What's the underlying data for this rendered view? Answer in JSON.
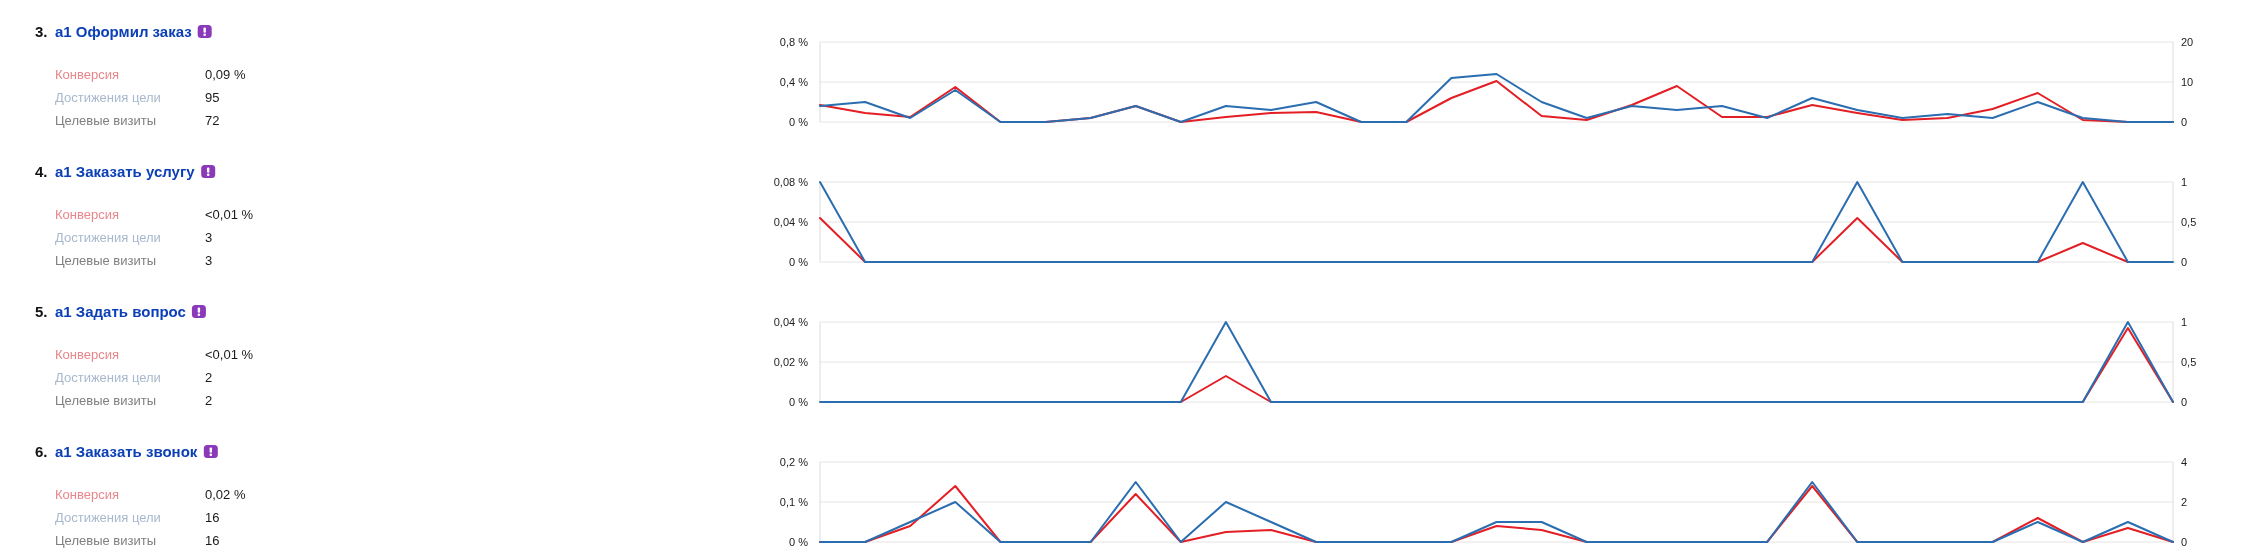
{
  "chart_data": [
    {
      "type": "other",
      "title": "3. a1 Оформил заказ",
      "annotations": [
        "Конверсия",
        "0,09 %",
        "Достижения цели",
        "95",
        "Целевые визиты",
        "72"
      ]
    },
    {
      "type": "line",
      "categories": [
        null,
        null,
        null,
        null,
        null,
        null,
        null,
        null,
        null,
        null,
        null,
        null,
        null,
        null,
        null,
        null,
        null,
        null,
        null,
        null,
        null,
        null,
        null,
        null,
        null,
        null,
        null,
        null,
        null,
        null,
        null
      ],
      "series": [
        {
          "color": "#e31e24",
          "values": [
            0.17,
            0.09,
            0.05,
            0.35,
            0,
            0,
            0.04,
            0.16,
            0,
            0.05,
            0.09,
            0.1,
            0,
            0,
            0.24,
            0.41,
            0.06,
            0.02,
            0.17,
            0.36,
            0.05,
            0.05,
            0.17,
            0.09,
            0.02,
            0.04,
            0.13,
            0.29,
            0.02,
            0,
            0
          ]
        },
        {
          "color": "#2a6db0",
          "axis": "y2",
          "values": [
            4,
            5,
            1,
            8,
            0,
            0,
            1,
            4,
            0,
            4,
            3,
            5,
            0,
            0,
            11,
            12,
            5,
            1,
            4,
            3,
            4,
            1,
            6,
            3,
            1,
            2,
            1,
            5,
            1,
            0,
            0
          ]
        }
      ],
      "ylim": [
        0,
        0.8
      ],
      "yticks": [
        {
          "value": 0,
          "label": "0 %"
        },
        {
          "value": 0.4,
          "label": "0,4 %"
        },
        {
          "value": 0.8,
          "label": "0,8 %"
        }
      ],
      "y2lim": [
        0,
        20
      ],
      "y2ticks": [
        0,
        10,
        20
      ],
      "grid": "y"
    },
    {
      "type": "other",
      "title": "4. a1 Заказать услугу",
      "annotations": [
        "Конверсия",
        "<0,01 %",
        "Достижения цели",
        "3",
        "Целевые визиты",
        "3"
      ]
    },
    {
      "type": "line",
      "categories": [
        null,
        null,
        null,
        null,
        null,
        null,
        null,
        null,
        null,
        null,
        null,
        null,
        null,
        null,
        null,
        null,
        null,
        null,
        null,
        null,
        null,
        null,
        null,
        null,
        null,
        null,
        null,
        null,
        null,
        null,
        null
      ],
      "series": [
        {
          "color": "#e31e24",
          "values": [
            0.044,
            0,
            null,
            null,
            null,
            null,
            null,
            null,
            null,
            null,
            null,
            null,
            null,
            null,
            null,
            null,
            null,
            null,
            null,
            null,
            null,
            null,
            0,
            0.044,
            0,
            null,
            null,
            0,
            0.019,
            0,
            null
          ]
        },
        {
          "color": "#2a6db0",
          "axis": "y2",
          "values": [
            1,
            0,
            0,
            0,
            0,
            0,
            0,
            0,
            0,
            0,
            0,
            0,
            0,
            0,
            0,
            0,
            0,
            0,
            0,
            0,
            0,
            0,
            0,
            1,
            0,
            0,
            0,
            0,
            1,
            0,
            0
          ]
        }
      ],
      "ylim": [
        0,
        0.08
      ],
      "yticks": [
        {
          "value": 0,
          "label": "0 %"
        },
        {
          "value": 0.04,
          "label": "0,04 %"
        },
        {
          "value": 0.08,
          "label": "0,08 %"
        }
      ],
      "y2lim": [
        0,
        1
      ],
      "y2ticks": [
        0,
        {
          "value": 0.5,
          "label": "0,5"
        },
        1
      ],
      "grid": "y"
    },
    {
      "type": "other",
      "title": "5. a1 Задать вопрос",
      "annotations": [
        "Конверсия",
        "<0,01 %",
        "Достижения цели",
        "2",
        "Целевые визиты",
        "2"
      ]
    },
    {
      "type": "line",
      "categories": [
        null,
        null,
        null,
        null,
        null,
        null,
        null,
        null,
        null,
        null,
        null,
        null,
        null,
        null,
        null,
        null,
        null,
        null,
        null,
        null,
        null,
        null,
        null,
        null,
        null,
        null,
        null,
        null,
        null,
        null,
        null
      ],
      "series": [
        {
          "color": "#e31e24",
          "values": [
            null,
            null,
            null,
            null,
            null,
            null,
            null,
            null,
            0,
            0.013,
            0,
            null,
            null,
            null,
            null,
            null,
            null,
            null,
            null,
            null,
            null,
            null,
            null,
            null,
            null,
            null,
            null,
            null,
            0,
            0.037,
            0
          ]
        },
        {
          "color": "#2a6db0",
          "axis": "y2",
          "values": [
            0,
            0,
            0,
            0,
            0,
            0,
            0,
            0,
            0,
            1,
            0,
            0,
            0,
            0,
            0,
            0,
            0,
            0,
            0,
            0,
            0,
            0,
            0,
            0,
            0,
            0,
            0,
            0,
            0,
            1,
            0
          ]
        }
      ],
      "ylim": [
        0,
        0.04
      ],
      "yticks": [
        {
          "value": 0,
          "label": "0 %"
        },
        {
          "value": 0.02,
          "label": "0,02 %"
        },
        {
          "value": 0.04,
          "label": "0,04 %"
        }
      ],
      "y2lim": [
        0,
        1
      ],
      "y2ticks": [
        0,
        {
          "value": 0.5,
          "label": "0,5"
        },
        1
      ],
      "grid": "y"
    },
    {
      "type": "other",
      "title": "6. a1 Заказать звонок",
      "annotations": [
        "Конверсия",
        "0,02 %",
        "Достижения цели",
        "16",
        "Целевые визиты",
        "16"
      ]
    },
    {
      "type": "line",
      "categories": [
        null,
        null,
        null,
        null,
        null,
        null,
        null,
        null,
        null,
        null,
        null,
        null,
        null,
        null,
        null,
        null,
        null,
        null,
        null,
        null,
        null,
        null,
        null,
        null,
        null,
        null,
        null,
        null,
        null,
        null,
        null
      ],
      "series": [
        {
          "color": "#e31e24",
          "values": [
            0,
            0,
            0.04,
            0.14,
            0,
            0,
            0,
            0.12,
            0,
            0.025,
            0.03,
            0,
            0,
            0,
            0,
            0.04,
            0.03,
            0,
            0,
            0,
            0,
            0,
            0.14,
            0,
            0,
            0,
            0,
            0.06,
            0,
            0.035,
            0
          ]
        },
        {
          "color": "#2a6db0",
          "axis": "y2",
          "values": [
            0,
            0,
            1,
            2,
            0,
            0,
            0,
            3,
            0,
            2,
            1,
            0,
            0,
            0,
            0,
            1,
            1,
            0,
            0,
            0,
            0,
            0,
            3,
            0,
            0,
            0,
            0,
            1,
            0,
            1,
            0
          ]
        }
      ],
      "ylim": [
        0,
        0.2
      ],
      "yticks": [
        {
          "value": 0,
          "label": "0 %"
        },
        {
          "value": 0.1,
          "label": "0,1 %"
        },
        {
          "value": 0.2,
          "label": "0,2 %"
        }
      ],
      "y2lim": [
        0,
        4
      ],
      "y2ticks": [
        0,
        2,
        4
      ],
      "grid": "y"
    }
  ]
}
